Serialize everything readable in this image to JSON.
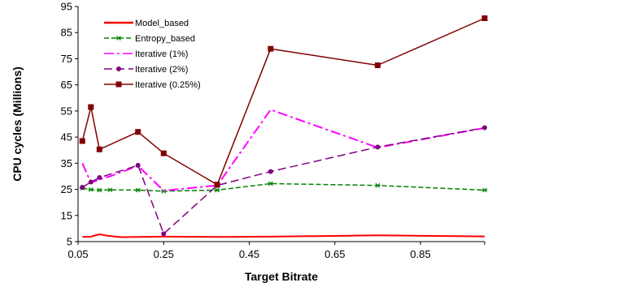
{
  "chart_data": {
    "type": "line",
    "xlabel": "Target Bitrate",
    "ylabel": "CPU cycles (Millions)",
    "xlim": [
      0.05,
      1.0
    ],
    "ylim": [
      5,
      95
    ],
    "xticks": [
      0.05,
      0.25,
      0.45,
      0.65,
      0.85
    ],
    "xtick_labels": [
      "0.05",
      "0.25",
      "0.45",
      "0.65",
      "0.85"
    ],
    "yticks": [
      5,
      15,
      25,
      35,
      45,
      55,
      65,
      75,
      85,
      95
    ],
    "ytick_labels": [
      "5",
      "15",
      "25",
      "35",
      "45",
      "55",
      "65",
      "75",
      "85",
      "95"
    ],
    "grid": false,
    "legend_position": "top-left",
    "series": [
      {
        "name": "Model_based",
        "color": "#ff0000",
        "dash": "solid",
        "marker": "none",
        "x": [
          0.06,
          0.08,
          0.1,
          0.12,
          0.15,
          0.19,
          0.25,
          0.375,
          0.5,
          0.75,
          1.0
        ],
        "y": [
          6.8,
          6.9,
          7.8,
          7.2,
          6.7,
          6.8,
          6.9,
          6.8,
          6.9,
          7.4,
          7.0
        ]
      },
      {
        "name": "Entropy_based",
        "color": "#008000",
        "dash": "dashed",
        "marker": "star",
        "x": [
          0.06,
          0.08,
          0.1,
          0.125,
          0.19,
          0.25,
          0.375,
          0.5,
          0.75,
          1.0
        ],
        "y": [
          25.5,
          24.9,
          24.7,
          24.8,
          24.7,
          24.3,
          24.7,
          27.2,
          26.5,
          24.7
        ]
      },
      {
        "name": "Iterative (1%)",
        "color": "#ff00ff",
        "dash": "dashdot",
        "marker": "none",
        "x": [
          0.06,
          0.08,
          0.1,
          0.125,
          0.19,
          0.25,
          0.375,
          0.5,
          0.75,
          1.0
        ],
        "y": [
          35.0,
          27.5,
          28.8,
          30.0,
          34.0,
          24.5,
          26.5,
          55.5,
          41.0,
          48.5
        ]
      },
      {
        "name": "Iterative (2%)",
        "color": "#800080",
        "dash": "longdash",
        "marker": "circle",
        "x": [
          0.06,
          0.08,
          0.1,
          0.19,
          0.25,
          0.375,
          0.5,
          0.75,
          1.0
        ],
        "y": [
          25.8,
          27.8,
          29.5,
          34.2,
          8.0,
          26.5,
          31.8,
          41.2,
          48.6
        ]
      },
      {
        "name": "Iterative (0.25%)",
        "color": "#800000",
        "dash": "solid",
        "marker": "square",
        "x": [
          0.06,
          0.08,
          0.1,
          0.19,
          0.25,
          0.375,
          0.5,
          0.75,
          1.0
        ],
        "y": [
          43.5,
          56.5,
          40.3,
          47.0,
          38.8,
          26.8,
          78.8,
          72.5,
          90.5
        ]
      }
    ]
  }
}
